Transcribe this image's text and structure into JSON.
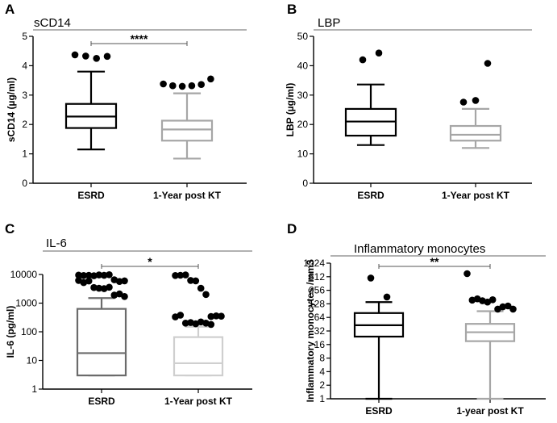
{
  "chart_data": [
    {
      "type": "box",
      "panel": "A",
      "title": "sCD14",
      "ylabel": "sCD14 (µg/ml)",
      "xlabel": "",
      "scale": "linear",
      "ylim": [
        0,
        5
      ],
      "yticks": [
        0,
        1,
        2,
        3,
        4,
        5
      ],
      "ytick_labels": [
        "0",
        "1",
        "2",
        "3",
        "4",
        "5"
      ],
      "categories": [
        "ESRD",
        "1-Year post KT"
      ],
      "colors": [
        "#000000",
        "#a6a6a6"
      ],
      "boxes": [
        {
          "min": 1.15,
          "q1": 1.88,
          "median": 2.27,
          "q3": 2.7,
          "max": 3.8,
          "outliers": [
            4.37,
            4.33,
            4.25,
            4.32
          ]
        },
        {
          "min": 0.84,
          "q1": 1.45,
          "median": 1.83,
          "q3": 2.13,
          "max": 3.06,
          "outliers": [
            3.38,
            3.32,
            3.3,
            3.32,
            3.36,
            3.55
          ]
        }
      ],
      "significance": {
        "label": "****",
        "from": 0,
        "to": 1
      }
    },
    {
      "type": "box",
      "panel": "B",
      "title": "LBP",
      "ylabel": "LBP (µg/ml)",
      "xlabel": "",
      "scale": "linear",
      "ylim": [
        0,
        50
      ],
      "yticks": [
        0,
        10,
        20,
        30,
        40,
        50
      ],
      "ytick_labels": [
        "0",
        "10",
        "20",
        "30",
        "40",
        "50"
      ],
      "categories": [
        "ESRD",
        "1-Year post KT"
      ],
      "colors": [
        "#000000",
        "#a6a6a6"
      ],
      "boxes": [
        {
          "min": 13,
          "q1": 16.2,
          "median": 21,
          "q3": 25.3,
          "max": 33.6,
          "outliers": [
            42,
            44.3
          ]
        },
        {
          "min": 12,
          "q1": 14.5,
          "median": 16.5,
          "q3": 19.5,
          "max": 25.3,
          "outliers": [
            27.6,
            28.2,
            40.8
          ]
        }
      ]
    },
    {
      "type": "box",
      "panel": "C",
      "title": "IL-6",
      "ylabel": "IL-6 (pg/ml)",
      "xlabel": "",
      "scale": "log10",
      "ylim": [
        1,
        10000
      ],
      "yticks": [
        1,
        10,
        100,
        1000,
        10000
      ],
      "ytick_labels": [
        "1",
        "10",
        "100",
        "1000",
        "10000"
      ],
      "categories": [
        "ESRD",
        "1-Year post KT"
      ],
      "colors": [
        "#6b6b6b",
        "#cfcfcf"
      ],
      "boxes": [
        {
          "min": 3,
          "q1": 3,
          "median": 18,
          "q3": 630,
          "max": 1500,
          "outliers": [
            9500,
            9200,
            9400,
            9000,
            9600,
            9300,
            9800,
            6500,
            5700,
            6000,
            6200,
            5200,
            5900,
            3500,
            3300,
            3200,
            3600,
            1900,
            2100,
            1700
          ]
        },
        {
          "min": 3,
          "q1": 3,
          "median": 8,
          "q3": 65,
          "max": 150,
          "outliers": [
            9200,
            9400,
            9600,
            6200,
            6000,
            3300,
            2000,
            340,
            360,
            350,
            330,
            380,
            200,
            210,
            190,
            220,
            200,
            180
          ]
        }
      ],
      "significance": {
        "label": "*",
        "from": 0,
        "to": 1
      }
    },
    {
      "type": "box",
      "panel": "D",
      "title": "Inflammatory monocytes",
      "ylabel": "Inflammatory monocytes /mm3",
      "xlabel": "",
      "scale": "log2",
      "ylim": [
        1,
        1024
      ],
      "yticks": [
        1,
        2,
        4,
        8,
        16,
        32,
        64,
        128,
        256,
        512,
        1024
      ],
      "ytick_labels": [
        "1",
        "2",
        "4",
        "8",
        "16",
        "32",
        "64",
        "128",
        "256",
        "512",
        "1024"
      ],
      "categories": [
        "ESRD",
        "1-year post KT"
      ],
      "colors": [
        "#000000",
        "#a6a6a6"
      ],
      "boxes": [
        {
          "min": 1,
          "q1": 24,
          "median": 43,
          "q3": 80,
          "max": 140,
          "outliers": [
            480,
            182
          ]
        },
        {
          "min": 1,
          "q1": 19,
          "median": 30,
          "q3": 46,
          "max": 88,
          "outliers": [
            600,
            155,
            165,
            150,
            140,
            158,
            98,
            110,
            115,
            98
          ]
        }
      ],
      "significance": {
        "label": "**",
        "from": 0,
        "to": 1
      }
    }
  ]
}
